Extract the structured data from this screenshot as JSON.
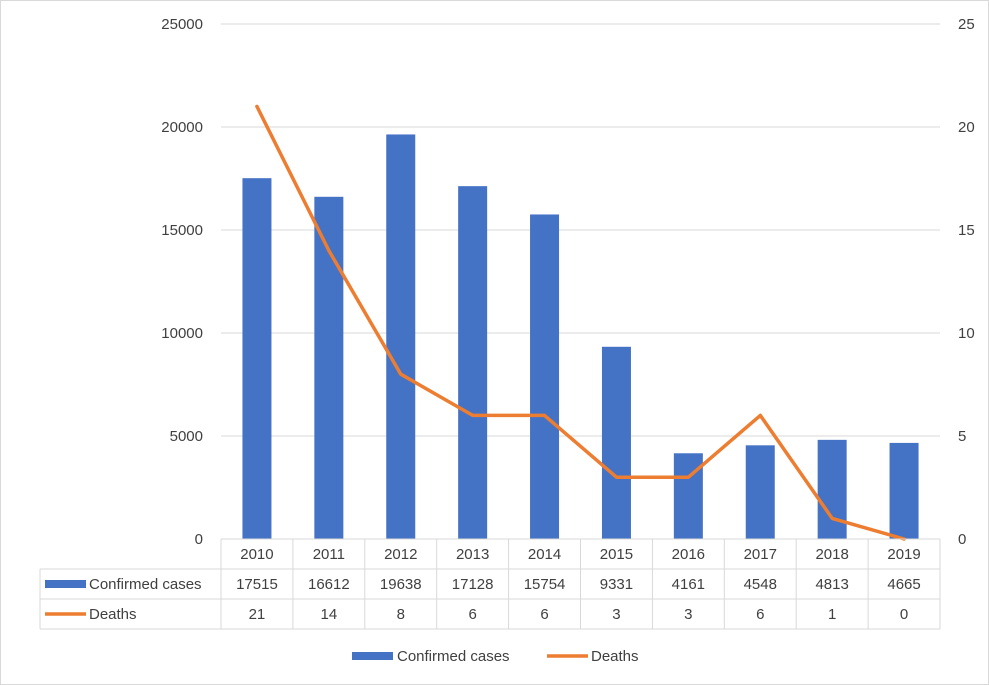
{
  "chart_data": {
    "type": "bar",
    "categories": [
      "2010",
      "2011",
      "2012",
      "2013",
      "2014",
      "2015",
      "2016",
      "2017",
      "2018",
      "2019"
    ],
    "series": [
      {
        "name": "Confirmed cases",
        "type": "bar",
        "axis": "left",
        "color": "#4472C4",
        "values": [
          17515,
          16612,
          19638,
          17128,
          15754,
          9331,
          4161,
          4548,
          4813,
          4665
        ]
      },
      {
        "name": "Deaths",
        "type": "line",
        "axis": "right",
        "color": "#ED7D31",
        "values": [
          21,
          14,
          8,
          6,
          6,
          3,
          3,
          6,
          1,
          0
        ]
      }
    ],
    "ylim_left": [
      0,
      25000
    ],
    "yticks_left": [
      0,
      5000,
      10000,
      15000,
      20000,
      25000
    ],
    "ylim_right": [
      0,
      25
    ],
    "yticks_right": [
      0,
      5,
      10,
      15,
      20,
      25
    ],
    "grid": true,
    "data_table": true,
    "legend": "bottom",
    "title": "",
    "xlabel": "",
    "ylabel": ""
  }
}
